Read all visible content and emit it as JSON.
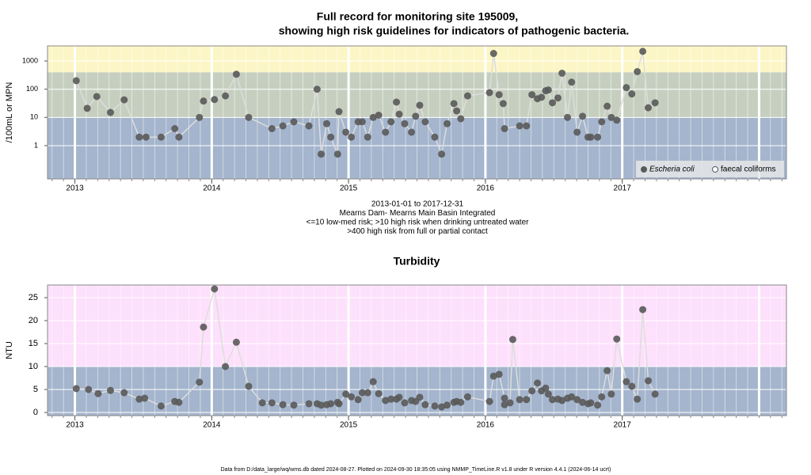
{
  "title": [
    "Full record for monitoring site 195009,",
    "showing high risk guidelines for indicators of pathogenic bacteria."
  ],
  "footer": "Data from D:/data_large/wq/wms.db dated 2024-08-27. Plotted on 2024-09-30 18:35:05 using NMMP_TimeLine.R v1.8 under R version 4.4.1 (2024-06-14 ucrt)",
  "chart_data": [
    {
      "type": "line",
      "log_scale": true,
      "subtitle": [
        "2013-01-01 to 2017-12-31",
        "Mearns Dam- Mearns Main Basin Integrated",
        "<=10 low-med risk; >10 high risk when drinking untreated water",
        ">400 high risk from full or partial contact"
      ],
      "y_label": "/100mL or MPN",
      "xlim": [
        2012.8,
        2018.2
      ],
      "xticks": [
        2013,
        2014,
        2015,
        2016,
        2017
      ],
      "ylim": [
        0.066,
        3430
      ],
      "yticks": [
        1,
        10,
        100,
        1000
      ],
      "thresholds": [
        10,
        400
      ],
      "band_colors": [
        "#a4b5cd",
        "#c6cfbf",
        "#fcf6c6"
      ],
      "grid": true,
      "legend": "bottom-right",
      "line_color": "#dddddd",
      "series": [
        {
          "name": "Escheria coli",
          "color": "#5a5a5a",
          "filled": true,
          "x": [
            2013.01,
            2013.09,
            2013.16,
            2013.26,
            2013.36,
            2013.47,
            2013.52,
            2013.63,
            2013.73,
            2013.76,
            2013.91,
            2013.94,
            2014.02,
            2014.1,
            2014.18,
            2014.27,
            2014.44,
            2014.52,
            2014.6,
            2014.71,
            2014.77,
            2014.8,
            2014.84,
            2014.87,
            2014.92,
            2014.93,
            2014.98,
            2015.02,
            2015.07,
            2015.1,
            2015.14,
            2015.18,
            2015.22,
            2015.27,
            2015.31,
            2015.35,
            2015.37,
            2015.41,
            2015.46,
            2015.49,
            2015.52,
            2015.56,
            2015.63,
            2015.68,
            2015.72,
            2015.77,
            2015.79,
            2015.82,
            2015.87,
            2016.03,
            2016.06,
            2016.1,
            2016.13,
            2016.14,
            2016.25,
            2016.3,
            2016.34,
            2016.38,
            2016.41,
            2016.44,
            2016.46,
            2016.49,
            2016.53,
            2016.56,
            2016.6,
            2016.63,
            2016.67,
            2016.71,
            2016.75,
            2016.77,
            2016.82,
            2016.85,
            2016.89,
            2016.92,
            2016.96,
            2017.03,
            2017.07,
            2017.11,
            2017.15,
            2017.19,
            2017.24
          ],
          "values": [
            200,
            21,
            55,
            15,
            42,
            2,
            2,
            2,
            4,
            2,
            10,
            38,
            43,
            58,
            340,
            10,
            4,
            5,
            7,
            5,
            100,
            0.5,
            6,
            2,
            0.5,
            16,
            3,
            2,
            7,
            7,
            2,
            10,
            12,
            3,
            7,
            35,
            13,
            6,
            3,
            11,
            27,
            7,
            2,
            0.5,
            6,
            31,
            17,
            9,
            58,
            76,
            1850,
            64,
            31,
            4,
            5,
            5,
            64,
            46,
            52,
            88,
            94,
            33,
            49,
            370,
            10,
            178,
            3,
            11,
            2,
            2,
            2,
            7,
            25,
            10,
            8,
            114,
            68,
            420,
            2200,
            22,
            33
          ]
        },
        {
          "name": "faecal coliforms",
          "color": "#5a5a5a",
          "filled": false,
          "x": [],
          "values": []
        }
      ]
    },
    {
      "type": "line",
      "log_scale": false,
      "title": "Turbidity",
      "y_label": "NTU",
      "xlim": [
        2012.8,
        2018.2
      ],
      "xticks": [
        2013,
        2014,
        2015,
        2016,
        2017
      ],
      "ylim": [
        -0.69,
        27.76
      ],
      "yticks": [
        0,
        5,
        10,
        15,
        20,
        25
      ],
      "thresholds": [
        10
      ],
      "band_colors": [
        "#a4b5cd",
        "#fde0fb"
      ],
      "grid": true,
      "line_color": "#dddddd",
      "series": [
        {
          "name": "Turbidity",
          "color": "#5a5a5a",
          "filled": true,
          "x": [
            2013.01,
            2013.1,
            2013.17,
            2013.26,
            2013.36,
            2013.47,
            2013.51,
            2013.63,
            2013.73,
            2013.76,
            2013.91,
            2013.94,
            2014.02,
            2014.1,
            2014.18,
            2014.27,
            2014.37,
            2014.44,
            2014.52,
            2014.6,
            2014.71,
            2014.77,
            2014.8,
            2014.84,
            2014.87,
            2014.92,
            2014.93,
            2014.98,
            2015.02,
            2015.07,
            2015.1,
            2015.14,
            2015.18,
            2015.22,
            2015.27,
            2015.31,
            2015.35,
            2015.37,
            2015.41,
            2015.46,
            2015.49,
            2015.52,
            2015.56,
            2015.63,
            2015.68,
            2015.72,
            2015.77,
            2015.79,
            2015.82,
            2015.87,
            2016.03,
            2016.06,
            2016.1,
            2016.14,
            2016.14,
            2016.18,
            2016.2,
            2016.25,
            2016.3,
            2016.34,
            2016.38,
            2016.41,
            2016.44,
            2016.46,
            2016.49,
            2016.53,
            2016.56,
            2016.6,
            2016.63,
            2016.67,
            2016.71,
            2016.75,
            2016.77,
            2016.82,
            2016.85,
            2016.89,
            2016.92,
            2016.96,
            2017.03,
            2017.07,
            2017.11,
            2017.15,
            2017.19,
            2017.24
          ],
          "values": [
            5.2,
            5.0,
            4.1,
            4.8,
            4.3,
            2.9,
            3.1,
            1.4,
            2.4,
            2.2,
            6.6,
            18.6,
            26.9,
            10.0,
            15.3,
            5.7,
            2.1,
            2.1,
            1.7,
            1.6,
            1.9,
            1.9,
            1.6,
            1.7,
            1.9,
            2.2,
            1.9,
            4.0,
            3.4,
            2.8,
            4.3,
            4.3,
            6.7,
            4.1,
            2.6,
            2.9,
            2.9,
            3.3,
            2.1,
            2.6,
            2.4,
            3.3,
            1.7,
            1.4,
            1.2,
            1.6,
            2.2,
            2.4,
            2.2,
            3.4,
            2.4,
            7.9,
            8.3,
            3.1,
            1.7,
            2.1,
            15.9,
            2.8,
            2.8,
            4.7,
            6.4,
            4.7,
            5.3,
            4.0,
            2.8,
            2.9,
            2.6,
            3.1,
            3.4,
            2.8,
            2.2,
            1.9,
            2.1,
            1.6,
            3.4,
            9.1,
            4.0,
            16.0,
            6.7,
            5.7,
            2.9,
            22.4,
            6.9,
            4.0
          ]
        }
      ]
    }
  ]
}
